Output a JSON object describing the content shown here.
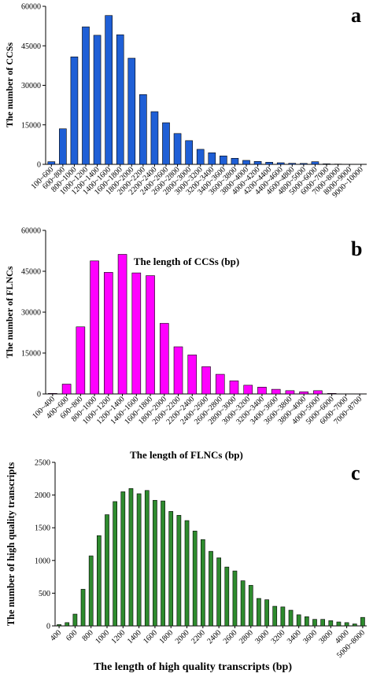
{
  "chart_data": [
    {
      "type": "bar",
      "panel_label": "a",
      "xlabel": "The length of CCSs (bp)",
      "ylabel": "The number of CCSs",
      "ylim": [
        0,
        60000
      ],
      "yticks": [
        0,
        15000,
        30000,
        45000,
        60000
      ],
      "bar_color": "#1f5fd6",
      "grid": false,
      "categories": [
        "100~600",
        "600~800",
        "800~1000",
        "1000~1200",
        "1200~1400",
        "1400~1600",
        "1600~1800",
        "1800~2000",
        "2000~2200",
        "2200~2400",
        "2400~2600",
        "2600~2800",
        "2800~3000",
        "3000~3200",
        "3200~3400",
        "3400~3600",
        "3600~3800",
        "3800~4000",
        "4000~4200",
        "4200~4400",
        "4400~4600",
        "4600~4800",
        "4800~5000",
        "5000~6000",
        "6000~7000",
        "7000~8000",
        "8000~9000",
        "9000~10000"
      ],
      "values": [
        1000,
        13500,
        40800,
        52200,
        49000,
        56500,
        49200,
        40300,
        26500,
        20000,
        15800,
        11700,
        9000,
        5700,
        4400,
        3200,
        2300,
        1500,
        1100,
        800,
        600,
        400,
        350,
        1000,
        200,
        100,
        50,
        20
      ]
    },
    {
      "type": "bar",
      "panel_label": "b",
      "xlabel": "The length of FLNCs (bp)",
      "ylabel": "The number of FLNCs",
      "ylim": [
        0,
        60000
      ],
      "yticks": [
        0,
        15000,
        30000,
        45000,
        60000
      ],
      "bar_color": "#ff00ff",
      "grid": false,
      "categories": [
        "100~400",
        "400~600",
        "600~800",
        "800~1000",
        "1000~1200",
        "1200~1400",
        "1400~1600",
        "1600~1800",
        "1800~2000",
        "2000~2200",
        "2200~2400",
        "2400~2600",
        "2600~2800",
        "2800~3000",
        "3000~3200",
        "3200~3400",
        "3400~3600",
        "3600~3800",
        "3800~4000",
        "4000~5000",
        "5000~6000",
        "6000~7000",
        "7000~8700"
      ],
      "values": [
        200,
        3600,
        24600,
        48800,
        44600,
        51200,
        44400,
        43400,
        25900,
        17300,
        14300,
        10000,
        7200,
        4800,
        3200,
        2500,
        1700,
        1200,
        800,
        1200,
        200,
        50,
        20
      ]
    },
    {
      "type": "bar",
      "panel_label": "c",
      "xlabel": "The length of high quality transcripts (bp)",
      "ylabel": "The number of high quality  transcripts",
      "ylim": [
        0,
        2500
      ],
      "yticks": [
        0,
        500,
        1000,
        1500,
        2000,
        2500
      ],
      "bar_color": "#2e8b2e",
      "grid": false,
      "tick_labels": [
        "400",
        "600",
        "800",
        "1000",
        "1200",
        "1400",
        "1600",
        "1800",
        "2000",
        "2200",
        "2400",
        "2600",
        "2800",
        "3000",
        "3200",
        "3400",
        "3600",
        "3800",
        "4000",
        "5000~8000"
      ],
      "x": [
        400,
        500,
        600,
        700,
        800,
        900,
        1000,
        1100,
        1200,
        1300,
        1400,
        1500,
        1600,
        1700,
        1800,
        1900,
        2000,
        2100,
        2200,
        2300,
        2400,
        2500,
        2600,
        2700,
        2800,
        2900,
        3000,
        3100,
        3200,
        3300,
        3400,
        3500,
        3600,
        3700,
        3800,
        3900,
        4000,
        4100,
        4200
      ],
      "values": [
        20,
        50,
        180,
        560,
        1070,
        1380,
        1700,
        1900,
        2050,
        2100,
        2020,
        2070,
        1920,
        1910,
        1750,
        1690,
        1610,
        1450,
        1320,
        1140,
        1040,
        900,
        840,
        690,
        620,
        420,
        400,
        300,
        290,
        240,
        170,
        140,
        100,
        100,
        80,
        60,
        50,
        30,
        130
      ]
    }
  ]
}
